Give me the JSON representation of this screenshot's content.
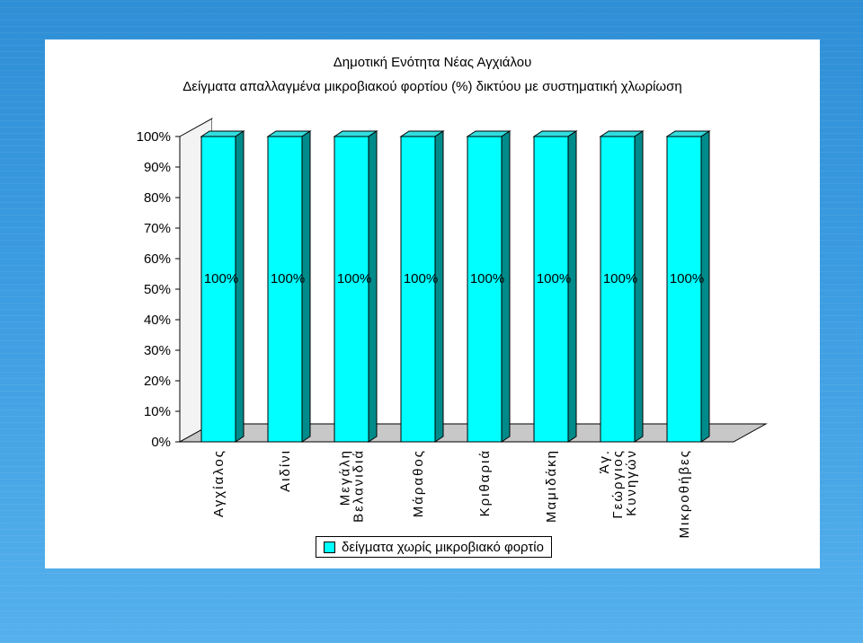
{
  "colors": {
    "background": "#3a9be0",
    "bar_front": "#00ffff",
    "bar_side": "#008b8b",
    "bar_top": "#33dddd",
    "wall": "#f3f3f3",
    "floor": "#c8c8c8"
  },
  "chart_data": {
    "type": "bar",
    "title": "Δημοτική Ενότητα Νέας Αγχιάλου",
    "subtitle": "Δείγματα απαλλαγμένα μικροβιακού φορτίου (%) δικτύου με συστηματική χλωρίωση",
    "categories": [
      [
        "Αγχίαλος"
      ],
      [
        "Αιδίνι"
      ],
      [
        "Μεγάλη",
        "Βελανιδιά"
      ],
      [
        "Μάραθος"
      ],
      [
        "Κριθαριά"
      ],
      [
        "Μαμιδάκη"
      ],
      [
        "Άγ.",
        "Γεώργιος",
        "Κυνηγών"
      ],
      [
        "Μικροθήβες"
      ]
    ],
    "series": [
      {
        "name": "δείγματα χωρίς μικροβιακό φορτίο",
        "values": [
          100,
          100,
          100,
          100,
          100,
          100,
          100,
          100
        ],
        "color": "#00ffff"
      }
    ],
    "data_labels": [
      "100%",
      "100%",
      "100%",
      "100%",
      "100%",
      "100%",
      "100%",
      "100%"
    ],
    "y_ticks": [
      "0%",
      "10%",
      "20%",
      "30%",
      "40%",
      "50%",
      "60%",
      "70%",
      "80%",
      "90%",
      "100%"
    ],
    "ylim": [
      0,
      100
    ],
    "grid": false,
    "legend_position": "bottom",
    "style": "3d-column"
  }
}
